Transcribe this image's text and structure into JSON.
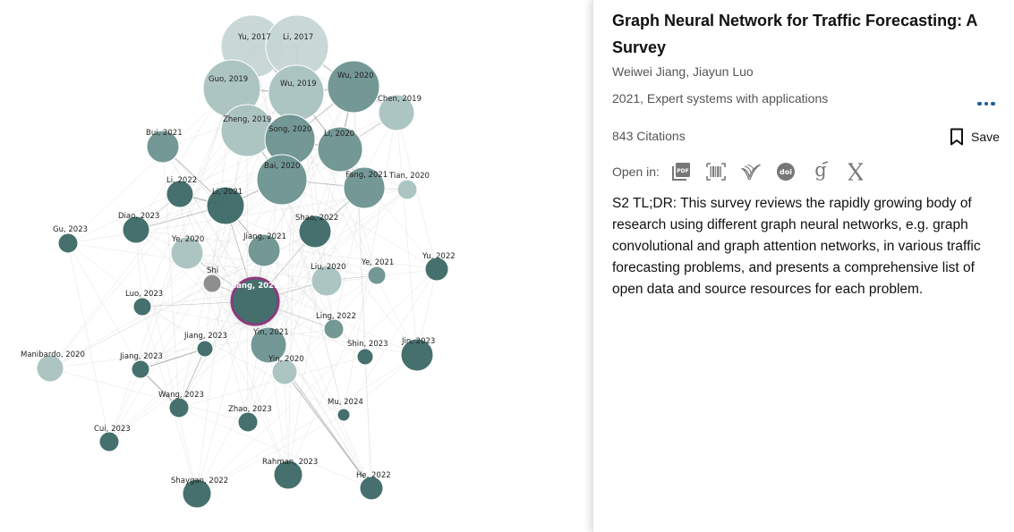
{
  "paper": {
    "title": "Graph Neural Network for Traffic Forecasting: A Survey",
    "authors": "Weiwei Jiang, Jiayun Luo",
    "venue": "2021, Expert systems with applications",
    "citations": "843 Citations",
    "save_label": "Save",
    "open_in_label": "Open in:",
    "open_in_icons": [
      "pdf-icon",
      "barcode-icon",
      "semantic-scholar-icon",
      "doi-icon",
      "google-scholar-icon",
      "x-icon"
    ],
    "tldr": "S2 TL;DR: This survey reviews the rapidly growing body of research using different graph neural networks, e.g. graph convolutional and graph attention networks, in various traffic forecasting problems, and presents a comprehensive list of open data and source resources for each problem."
  },
  "colors": {
    "dark": "#3f6b69",
    "mid": "#6e9593",
    "light": "#a9c3c1",
    "pale": "#c6d6d5",
    "grey": "#8a8a8a",
    "selected_ring": "#8c3a7c",
    "accent": "#1b5e99"
  },
  "graph": {
    "selected": "Jiang, 2021",
    "nodes": [
      {
        "label": "Yu, 2017",
        "shade": "pale"
      },
      {
        "label": "Li, 2017",
        "shade": "pale"
      },
      {
        "label": "Guo, 2019",
        "shade": "light"
      },
      {
        "label": "Wu, 2019",
        "shade": "light"
      },
      {
        "label": "Wu, 2020",
        "shade": "mid"
      },
      {
        "label": "Chen, 2019",
        "shade": "light"
      },
      {
        "label": "Zheng, 2019",
        "shade": "light"
      },
      {
        "label": "Song, 2020",
        "shade": "mid"
      },
      {
        "label": "Li, 2020",
        "shade": "mid"
      },
      {
        "label": "Bui, 2021",
        "shade": "mid"
      },
      {
        "label": "Bai, 2020",
        "shade": "mid"
      },
      {
        "label": "Fang, 2021",
        "shade": "mid"
      },
      {
        "label": "Tian, 2020",
        "shade": "light"
      },
      {
        "label": "Li, 2022",
        "shade": "dark"
      },
      {
        "label": "Li, 2021",
        "shade": "dark"
      },
      {
        "label": "Diao, 2023",
        "shade": "dark"
      },
      {
        "label": "Shao, 2022",
        "shade": "dark"
      },
      {
        "label": "Gu, 2023",
        "shade": "dark"
      },
      {
        "label": "Ye, 2020",
        "shade": "light"
      },
      {
        "label": "Jiang, 2021",
        "shade": "mid"
      },
      {
        "label": "Yu, 2022",
        "shade": "dark"
      },
      {
        "label": "Shi",
        "shade": "grey"
      },
      {
        "label": "Liu, 2020",
        "shade": "light"
      },
      {
        "label": "Ye, 2021",
        "shade": "mid"
      },
      {
        "label": "Jiang, 2021",
        "shade": "dark",
        "selected": true
      },
      {
        "label": "Luo, 2023",
        "shade": "dark"
      },
      {
        "label": "Ling, 2022",
        "shade": "mid"
      },
      {
        "label": "Jiang, 2023",
        "shade": "dark"
      },
      {
        "label": "Yin, 2021",
        "shade": "mid"
      },
      {
        "label": "Shin, 2023",
        "shade": "dark"
      },
      {
        "label": "Jin, 2023",
        "shade": "dark"
      },
      {
        "label": "Manibardo, 2020",
        "shade": "light"
      },
      {
        "label": "Jiang, 2023",
        "shade": "dark"
      },
      {
        "label": "Yin, 2020",
        "shade": "light"
      },
      {
        "label": "Wang, 2023",
        "shade": "dark"
      },
      {
        "label": "Mu, 2024",
        "shade": "dark"
      },
      {
        "label": "Zhao, 2023",
        "shade": "dark"
      },
      {
        "label": "Cui, 2023",
        "shade": "dark"
      },
      {
        "label": "Rahman, 2023",
        "shade": "dark"
      },
      {
        "label": "He, 2022",
        "shade": "dark"
      },
      {
        "label": "Shaygan, 2022",
        "shade": "dark"
      }
    ]
  }
}
